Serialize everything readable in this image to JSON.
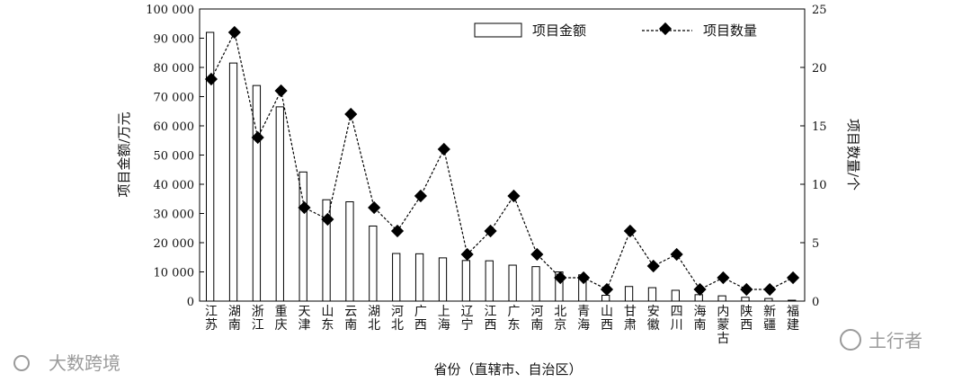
{
  "chart_data": {
    "type": "bar",
    "categories": [
      "江苏",
      "湖南",
      "浙江",
      "重庆",
      "天津",
      "山东",
      "云南",
      "湖北",
      "河北",
      "广西",
      "上海",
      "辽宁",
      "江西",
      "广东",
      "河南",
      "北京",
      "青海",
      "山西",
      "甘肃",
      "安徽",
      "四川",
      "海南",
      "内蒙古",
      "陕西",
      "新疆",
      "福建"
    ],
    "series": [
      {
        "name": "项目金额",
        "type": "bar",
        "axis": "left",
        "values": [
          92000,
          81500,
          73800,
          66500,
          44200,
          34700,
          34000,
          25700,
          16300,
          16200,
          14800,
          13900,
          13800,
          12300,
          11800,
          10000,
          9000,
          2000,
          5000,
          4600,
          3700,
          2200,
          1800,
          1300,
          900,
          300
        ]
      },
      {
        "name": "项目数量",
        "type": "line",
        "axis": "right",
        "values": [
          19,
          23,
          14,
          18,
          8,
          7,
          16,
          8,
          6,
          9,
          13,
          4,
          6,
          9,
          4,
          2,
          2,
          1,
          6,
          3,
          4,
          1,
          2,
          1,
          1,
          2
        ]
      }
    ],
    "xlabel": "省份（直辖市、自治区）",
    "ylabel": "项目金额/万元",
    "y2label": "项目数量/个",
    "ylim": [
      0,
      100000
    ],
    "y2lim": [
      0,
      25
    ],
    "yticks": [
      "0",
      "10 000",
      "20 000",
      "30 000",
      "40 000",
      "50 000",
      "60 000",
      "70 000",
      "80 000",
      "90 000",
      "100 000"
    ],
    "y2ticks": [
      "0",
      "5",
      "10",
      "15",
      "20",
      "25"
    ],
    "legend_position": "top-right",
    "colors": {
      "bar_fill": "#ffffff",
      "bar_stroke": "#000000",
      "line": "#000000",
      "marker": "#000000"
    }
  },
  "watermarks": {
    "left": "大数跨境",
    "right": "土行者"
  }
}
